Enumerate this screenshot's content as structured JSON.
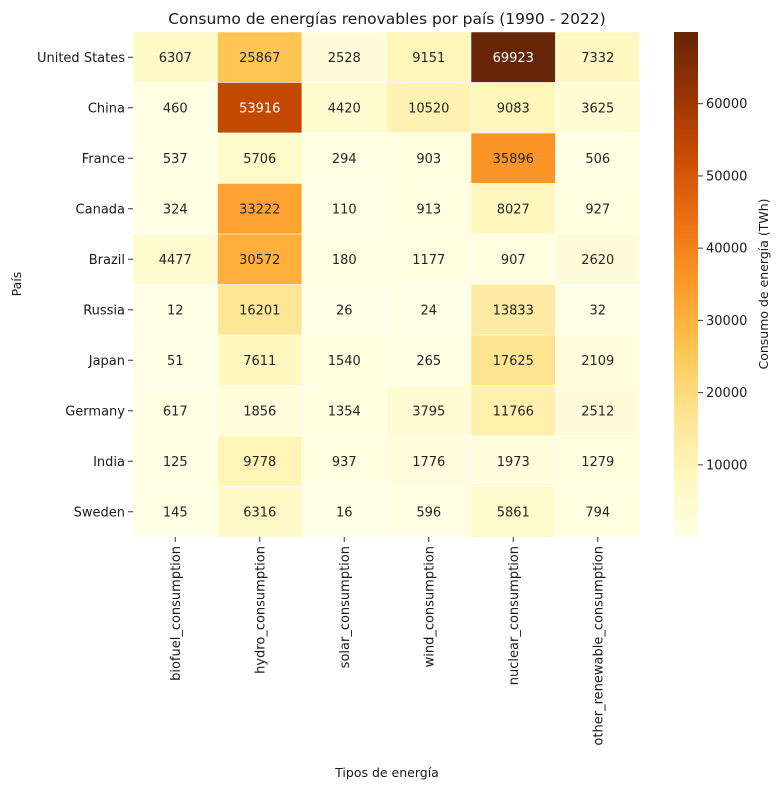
{
  "chart_data": {
    "type": "heatmap",
    "title": "Consumo de energías renovables por país (1990 - 2022)",
    "xlabel": "Tipos de energía",
    "ylabel": "País",
    "colorbar_label": "Consumo de energía (TWh)",
    "colormap": "YlOrBr",
    "colorbar_range": [
      12,
      69923
    ],
    "colorbar_ticks": [
      10000,
      20000,
      30000,
      40000,
      50000,
      60000
    ],
    "x_categories": [
      "biofuel_consumption",
      "hydro_consumption",
      "solar_consumption",
      "wind_consumption",
      "nuclear_consumption",
      "other_renewable_consumption"
    ],
    "y_categories": [
      "United States",
      "China",
      "France",
      "Canada",
      "Brazil",
      "Russia",
      "Japan",
      "Germany",
      "India",
      "Sweden"
    ],
    "values": [
      [
        6307,
        25867,
        2528,
        9151,
        69923,
        7332
      ],
      [
        460,
        53916,
        4420,
        10520,
        9083,
        3625
      ],
      [
        537,
        5706,
        294,
        903,
        35896,
        506
      ],
      [
        324,
        33222,
        110,
        913,
        8027,
        927
      ],
      [
        4477,
        30572,
        180,
        1177,
        907,
        2620
      ],
      [
        12,
        16201,
        26,
        24,
        13833,
        32
      ],
      [
        51,
        7611,
        1540,
        265,
        17625,
        2109
      ],
      [
        617,
        1856,
        1354,
        3795,
        11766,
        2512
      ],
      [
        125,
        9778,
        937,
        1776,
        1973,
        1279
      ],
      [
        145,
        6316,
        16,
        596,
        5861,
        794
      ]
    ],
    "annotations": true,
    "grid": false
  }
}
